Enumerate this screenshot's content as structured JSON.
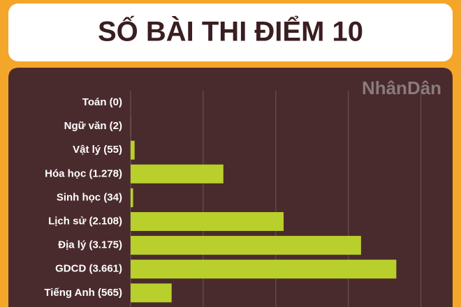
{
  "chart_data": {
    "type": "bar",
    "orientation": "horizontal",
    "title": "SỐ BÀI THI ĐIỂM 10",
    "watermark": "NhânDân",
    "categories": [
      "Toán (0)",
      "Ngữ văn (2)",
      "Vật lý (55)",
      "Hóa học (1.278)",
      "Sinh học (34)",
      "Lịch sử (2.108)",
      "Địa lý (3.175)",
      "GDCD (3.661)",
      "Tiếng Anh (565)"
    ],
    "values": [
      0,
      2,
      55,
      1278,
      34,
      2108,
      3175,
      3661,
      565
    ],
    "color": "#b9cf2b",
    "xlim": [
      0,
      4350
    ],
    "xticks": [
      0,
      1000,
      2000,
      3000,
      4000
    ],
    "grid": true
  }
}
